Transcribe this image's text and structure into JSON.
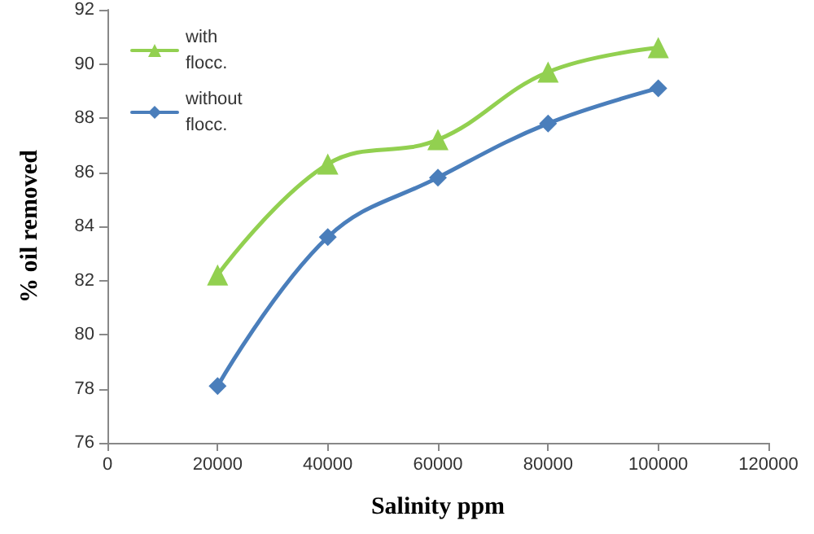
{
  "chart_data": {
    "type": "line",
    "xlabel": "Salinity ppm",
    "ylabel": "% oil removed",
    "x": [
      20000,
      40000,
      60000,
      80000,
      100000
    ],
    "series": [
      {
        "name": "with flocc.",
        "color": "#92d050",
        "marker": "triangle",
        "values": [
          82.2,
          86.3,
          87.2,
          89.7,
          90.6
        ]
      },
      {
        "name": "without flocc.",
        "color": "#4a7ebb",
        "marker": "diamond",
        "values": [
          78.1,
          83.6,
          85.8,
          87.8,
          89.1
        ]
      }
    ],
    "xlim": [
      0,
      120000
    ],
    "xticks": [
      0,
      20000,
      40000,
      60000,
      80000,
      100000,
      120000
    ],
    "ylim": [
      76,
      92
    ],
    "yticks": [
      76,
      78,
      80,
      82,
      84,
      86,
      88,
      90,
      92
    ],
    "grid": false,
    "legend": "top left"
  }
}
